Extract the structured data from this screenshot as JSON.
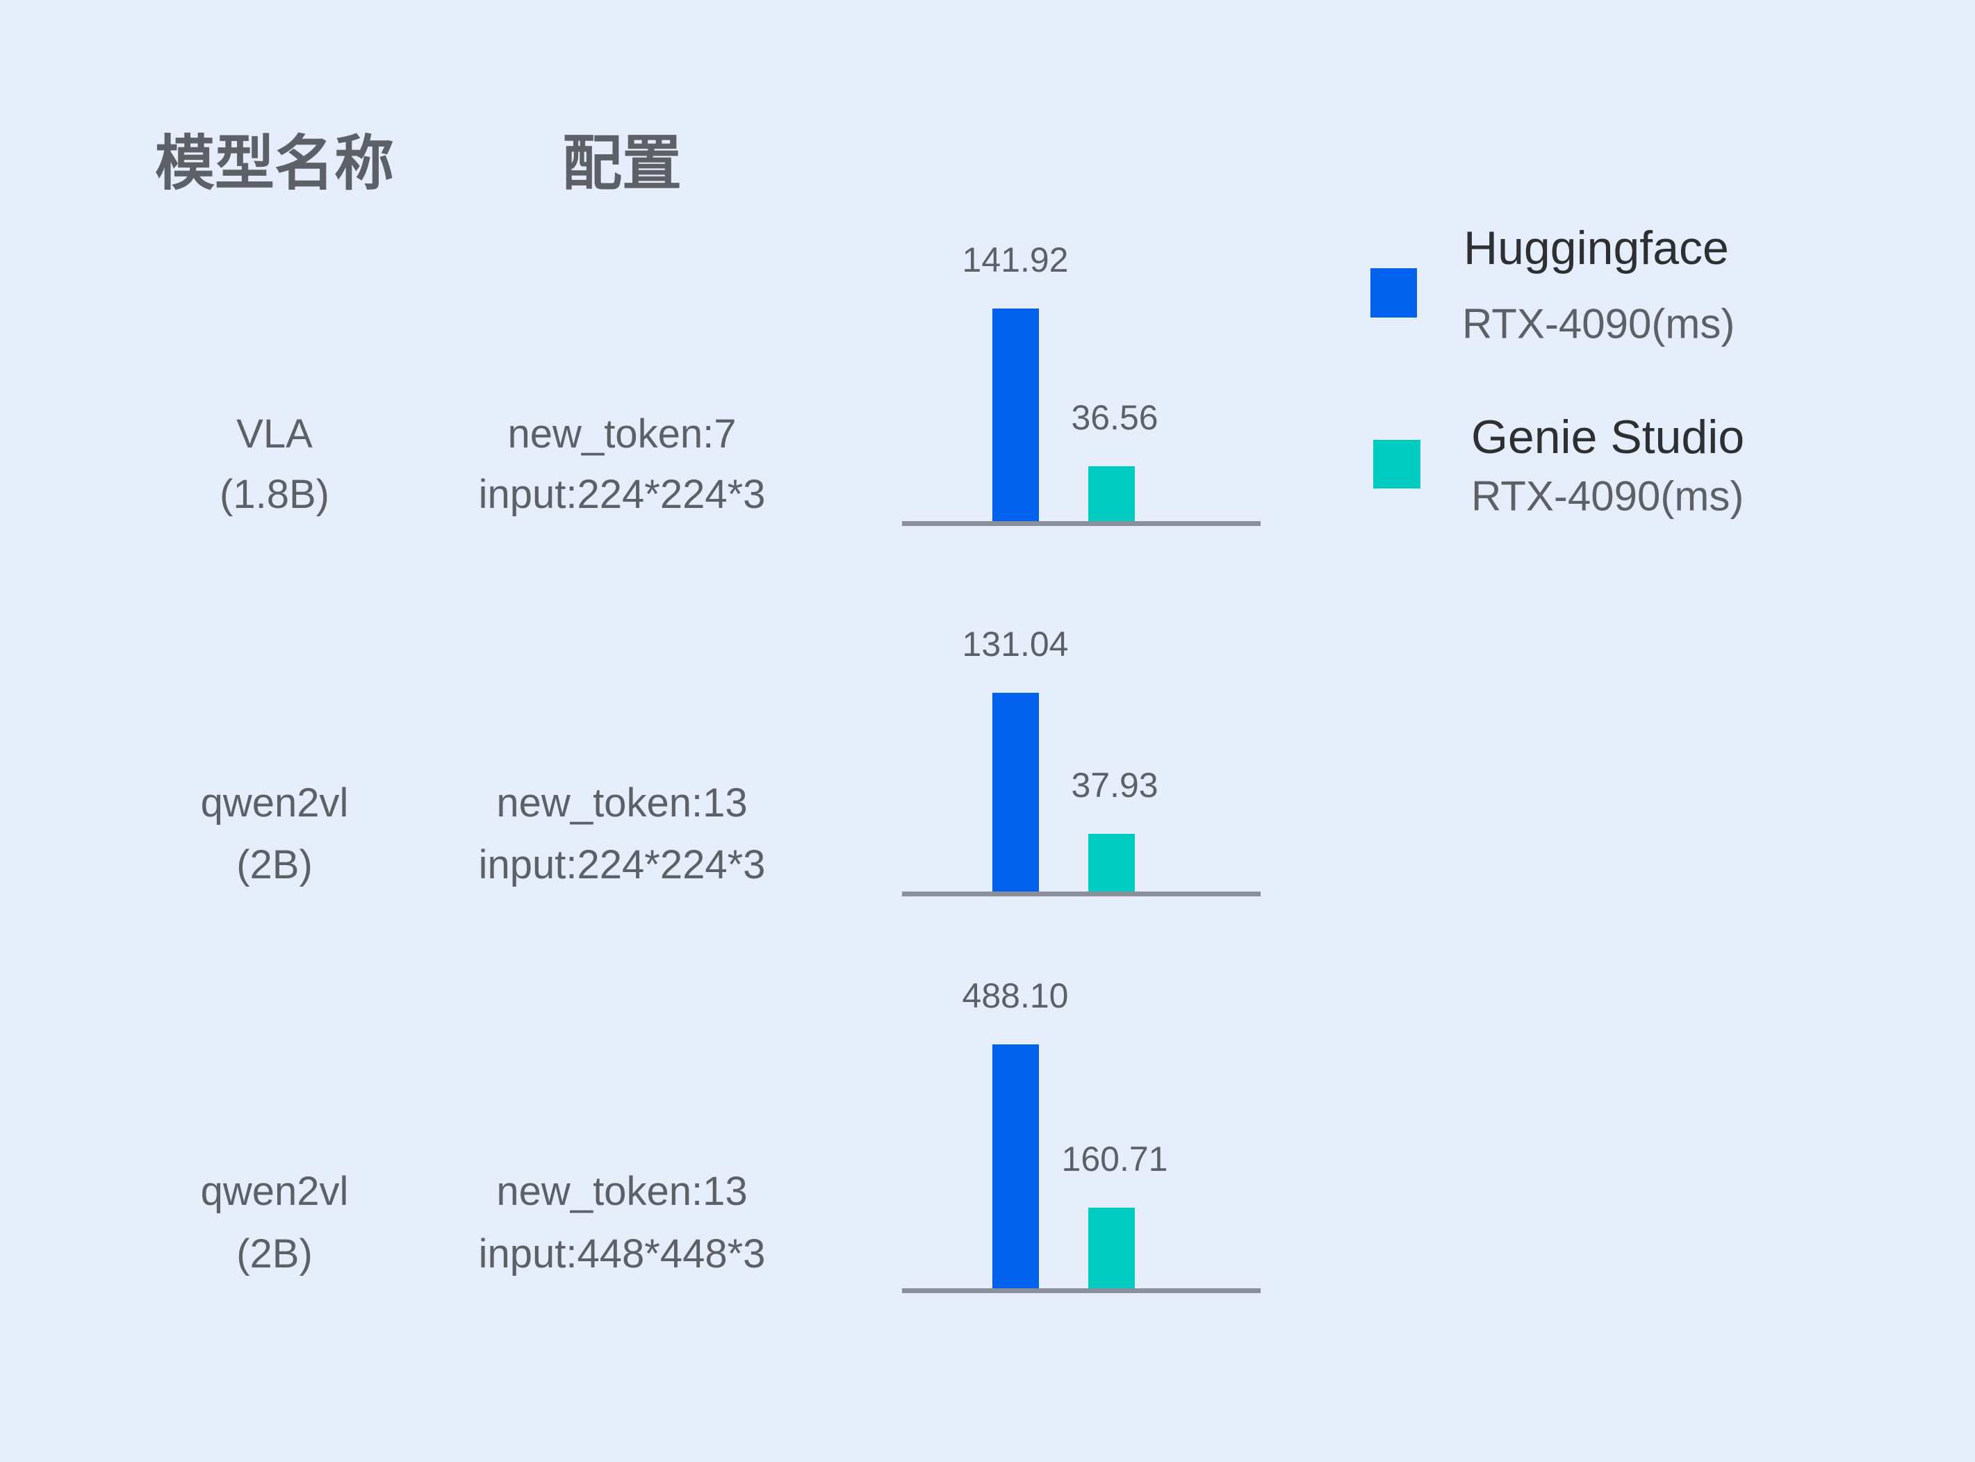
{
  "headers": {
    "model": "模型名称",
    "config": "配置"
  },
  "colors": {
    "huggingface": "#0160ec",
    "genie": "#00ccc2",
    "axis": "#8a8f9a",
    "background": "#e7eefb"
  },
  "legend": [
    {
      "title": "Huggingface",
      "subtitle": "RTX-4090(ms)",
      "color": "#0160ec"
    },
    {
      "title": "Genie Studio",
      "subtitle": "RTX-4090(ms)",
      "color": "#00ccc2"
    }
  ],
  "chart_data": {
    "type": "bar",
    "categories": [
      "VLA (1.8B) new_token:7 input:224*224*3",
      "qwen2vl (2B) new_token:13 input:224*224*3",
      "qwen2vl (2B) new_token:13 input:448*448*3"
    ],
    "series": [
      {
        "name": "Huggingface RTX-4090(ms)",
        "values": [
          141.92,
          131.04,
          488.1
        ]
      },
      {
        "name": "Genie Studio RTX-4090(ms)",
        "values": [
          36.56,
          37.93,
          160.71
        ]
      }
    ],
    "value_labels": [
      [
        "141.92",
        "36.56"
      ],
      [
        "131.04",
        "37.93"
      ],
      [
        "488.10",
        "160.71"
      ]
    ],
    "grid": false,
    "legend_position": "top-right"
  },
  "rows": [
    {
      "model": "VLA",
      "size": "(1.8B)",
      "config1": "new_token:7",
      "config2": "input:224*224*3"
    },
    {
      "model": "qwen2vl",
      "size": "(2B)",
      "config1": "new_token:13",
      "config2": "input:224*224*3"
    },
    {
      "model": "qwen2vl",
      "size": "(2B)",
      "config1": "new_token:13",
      "config2": "input:448*448*3"
    }
  ]
}
